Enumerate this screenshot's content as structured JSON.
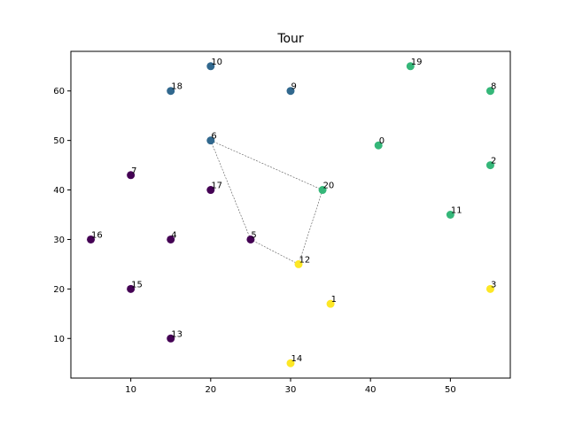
{
  "chart_data": {
    "type": "scatter",
    "title": "Tour",
    "xlabel": "",
    "ylabel": "",
    "xlim": [
      2.5,
      57.5
    ],
    "ylim": [
      2.0,
      68.0
    ],
    "xticks": [
      10,
      20,
      30,
      40,
      50
    ],
    "yticks": [
      10,
      20,
      30,
      40,
      50,
      60
    ],
    "grid": false,
    "legend": "none",
    "cluster_colors": {
      "purple": "#440154",
      "blue": "#31688e",
      "green": "#35b779",
      "yellow": "#fde725"
    },
    "points": [
      {
        "label": "0",
        "x": 41,
        "y": 49,
        "cluster": "green"
      },
      {
        "label": "1",
        "x": 35,
        "y": 17,
        "cluster": "yellow"
      },
      {
        "label": "2",
        "x": 55,
        "y": 45,
        "cluster": "green"
      },
      {
        "label": "3",
        "x": 55,
        "y": 20,
        "cluster": "yellow"
      },
      {
        "label": "4",
        "x": 15,
        "y": 30,
        "cluster": "purple"
      },
      {
        "label": "5",
        "x": 25,
        "y": 30,
        "cluster": "purple"
      },
      {
        "label": "6",
        "x": 20,
        "y": 50,
        "cluster": "blue"
      },
      {
        "label": "7",
        "x": 10,
        "y": 43,
        "cluster": "purple"
      },
      {
        "label": "8",
        "x": 55,
        "y": 60,
        "cluster": "green"
      },
      {
        "label": "9",
        "x": 30,
        "y": 60,
        "cluster": "blue"
      },
      {
        "label": "10",
        "x": 20,
        "y": 65,
        "cluster": "blue"
      },
      {
        "label": "11",
        "x": 50,
        "y": 35,
        "cluster": "green"
      },
      {
        "label": "12",
        "x": 31,
        "y": 25,
        "cluster": "yellow"
      },
      {
        "label": "13",
        "x": 15,
        "y": 10,
        "cluster": "purple"
      },
      {
        "label": "14",
        "x": 30,
        "y": 5,
        "cluster": "yellow"
      },
      {
        "label": "15",
        "x": 10,
        "y": 20,
        "cluster": "purple"
      },
      {
        "label": "16",
        "x": 5,
        "y": 30,
        "cluster": "purple"
      },
      {
        "label": "17",
        "x": 20,
        "y": 40,
        "cluster": "purple"
      },
      {
        "label": "18",
        "x": 15,
        "y": 60,
        "cluster": "blue"
      },
      {
        "label": "19",
        "x": 45,
        "y": 65,
        "cluster": "green"
      },
      {
        "label": "20",
        "x": 34,
        "y": 40,
        "cluster": "green"
      }
    ],
    "tour": [
      "6",
      "20",
      "12",
      "5",
      "6"
    ],
    "tour_line_color": "#555555"
  }
}
